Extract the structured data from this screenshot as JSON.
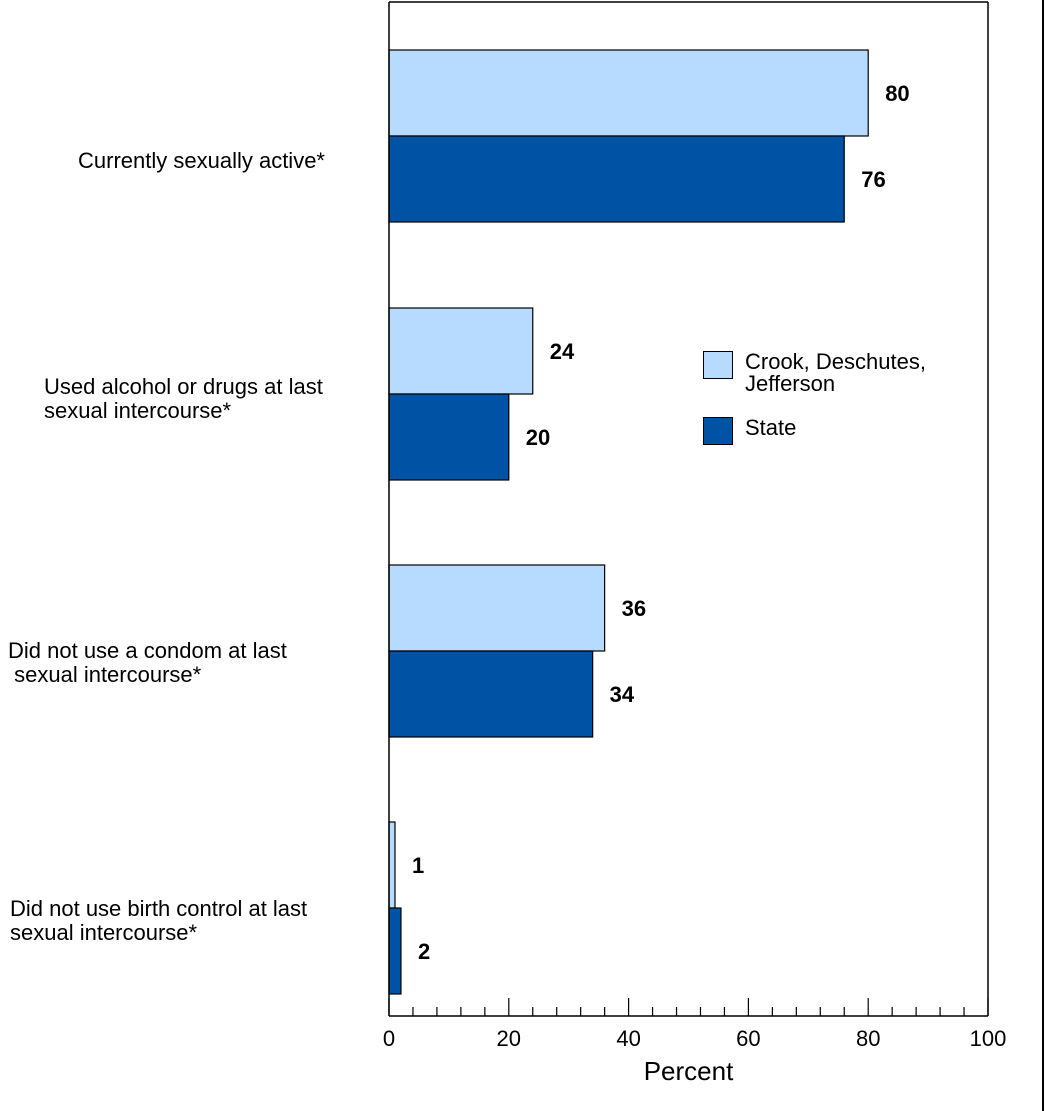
{
  "chart_data": {
    "type": "bar",
    "orientation": "horizontal",
    "categories": [
      "Currently sexually active*",
      "Used alcohol or drugs at last\nsexual intercourse*",
      "Did not use a condom at last\n sexual intercourse*",
      "Did not use birth control at last\nsexual intercourse*"
    ],
    "series": [
      {
        "name": "Crook, Deschutes,\nJefferson",
        "color": "#b7dbff",
        "values": [
          80,
          24,
          36,
          1
        ]
      },
      {
        "name": "State",
        "color": "#0052a5",
        "values": [
          76,
          20,
          34,
          2
        ]
      }
    ],
    "xlabel": "Percent",
    "xlim": [
      0,
      100
    ],
    "xticks": [
      0,
      20,
      40,
      60,
      80,
      100
    ],
    "grid": false,
    "legend_position": "right"
  }
}
